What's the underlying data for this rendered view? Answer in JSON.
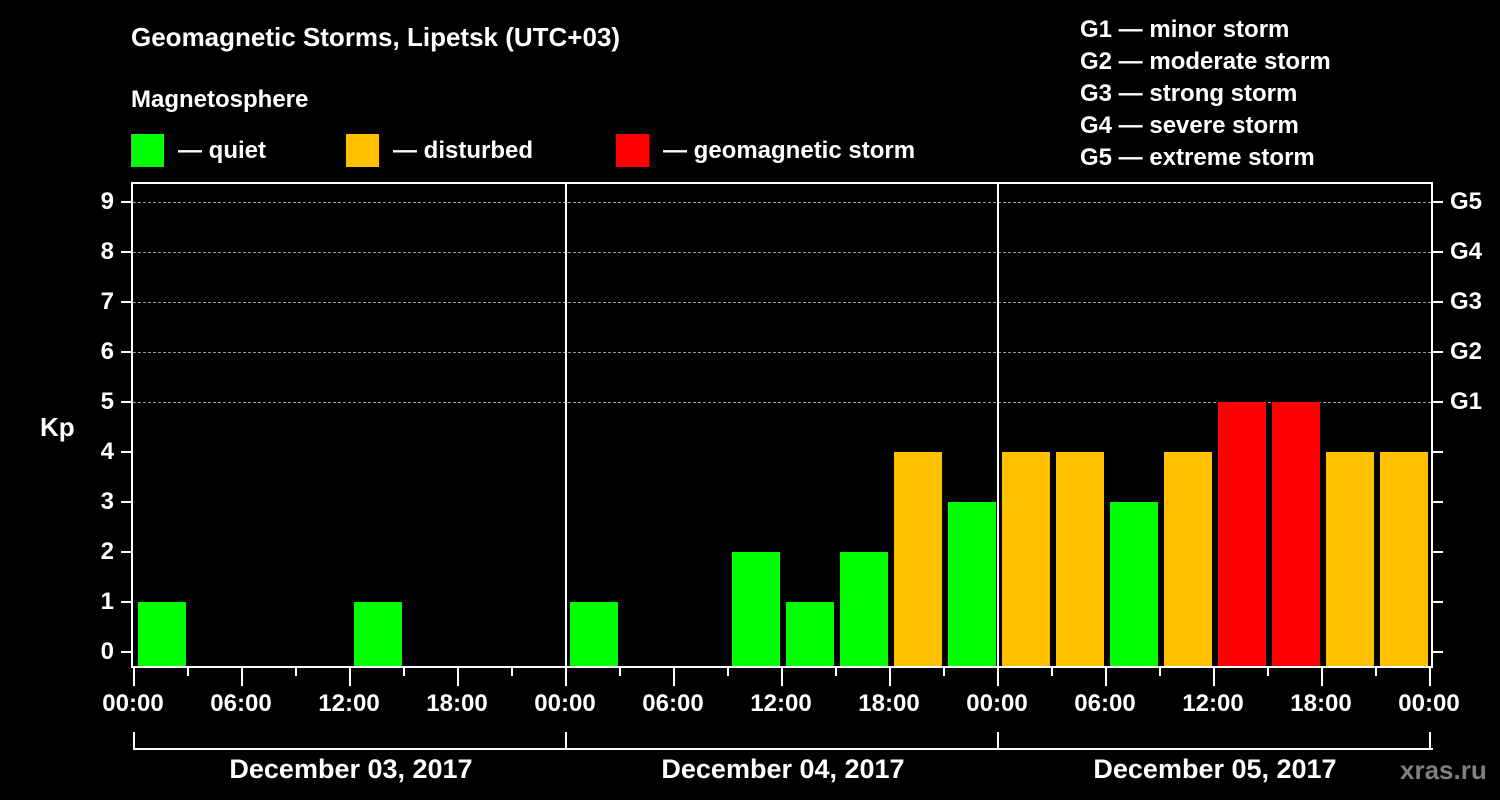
{
  "header": {
    "title": "Geomagnetic Storms, Lipetsk (UTC+03)",
    "subtitle": "Magnetosphere"
  },
  "legend": {
    "items": [
      {
        "label": "— quiet",
        "color": "#00ff00"
      },
      {
        "label": "— disturbed",
        "color": "#ffc000"
      },
      {
        "label": "— geomagnetic storm",
        "color": "#ff0000"
      }
    ]
  },
  "g_legend": [
    "G1 — minor storm",
    "G2 — moderate storm",
    "G3 — strong storm",
    "G4 — severe storm",
    "G5 — extreme storm"
  ],
  "watermark": "xras.ru",
  "chart_data": {
    "type": "bar",
    "title": "Geomagnetic Storms, Lipetsk (UTC+03)",
    "subtitle": "Magnetosphere",
    "ylabel": "Kp",
    "xlabel": "",
    "ylim": [
      0,
      9
    ],
    "yticks": [
      0,
      1,
      2,
      3,
      4,
      5,
      6,
      7,
      8,
      9
    ],
    "y2_labels": [
      {
        "kp": 5,
        "label": "G1"
      },
      {
        "kp": 6,
        "label": "G2"
      },
      {
        "kp": 7,
        "label": "G3"
      },
      {
        "kp": 8,
        "label": "G4"
      },
      {
        "kp": 9,
        "label": "G5"
      }
    ],
    "grid": {
      "y_dashed_at": [
        5,
        6,
        7,
        8,
        9
      ]
    },
    "x_tick_labels": [
      "00:00",
      "06:00",
      "12:00",
      "18:00",
      "00:00",
      "06:00",
      "12:00",
      "18:00",
      "00:00",
      "06:00",
      "12:00",
      "18:00",
      "00:00"
    ],
    "days": [
      "December 03, 2017",
      "December 04, 2017",
      "December 05, 2017"
    ],
    "interval_hours": 3,
    "categories": [
      "12-03 00:00",
      "12-03 03:00",
      "12-03 06:00",
      "12-03 09:00",
      "12-03 12:00",
      "12-03 15:00",
      "12-03 18:00",
      "12-03 21:00",
      "12-04 00:00",
      "12-04 03:00",
      "12-04 06:00",
      "12-04 09:00",
      "12-04 12:00",
      "12-04 15:00",
      "12-04 18:00",
      "12-04 21:00",
      "12-05 00:00",
      "12-05 03:00",
      "12-05 06:00",
      "12-05 09:00",
      "12-05 12:00",
      "12-05 15:00",
      "12-05 18:00",
      "12-05 21:00"
    ],
    "values": [
      1,
      0,
      0,
      0,
      1,
      0,
      0,
      0,
      1,
      0,
      0,
      2,
      1,
      2,
      4,
      3,
      4,
      4,
      3,
      4,
      5,
      5,
      4,
      4
    ],
    "color_scale": {
      "quiet": "#00ff00",
      "disturbed": "#ffc000",
      "storm": "#ff0000",
      "rule": "Kp<4 quiet, Kp=4 disturbed, Kp>=5 storm"
    }
  }
}
